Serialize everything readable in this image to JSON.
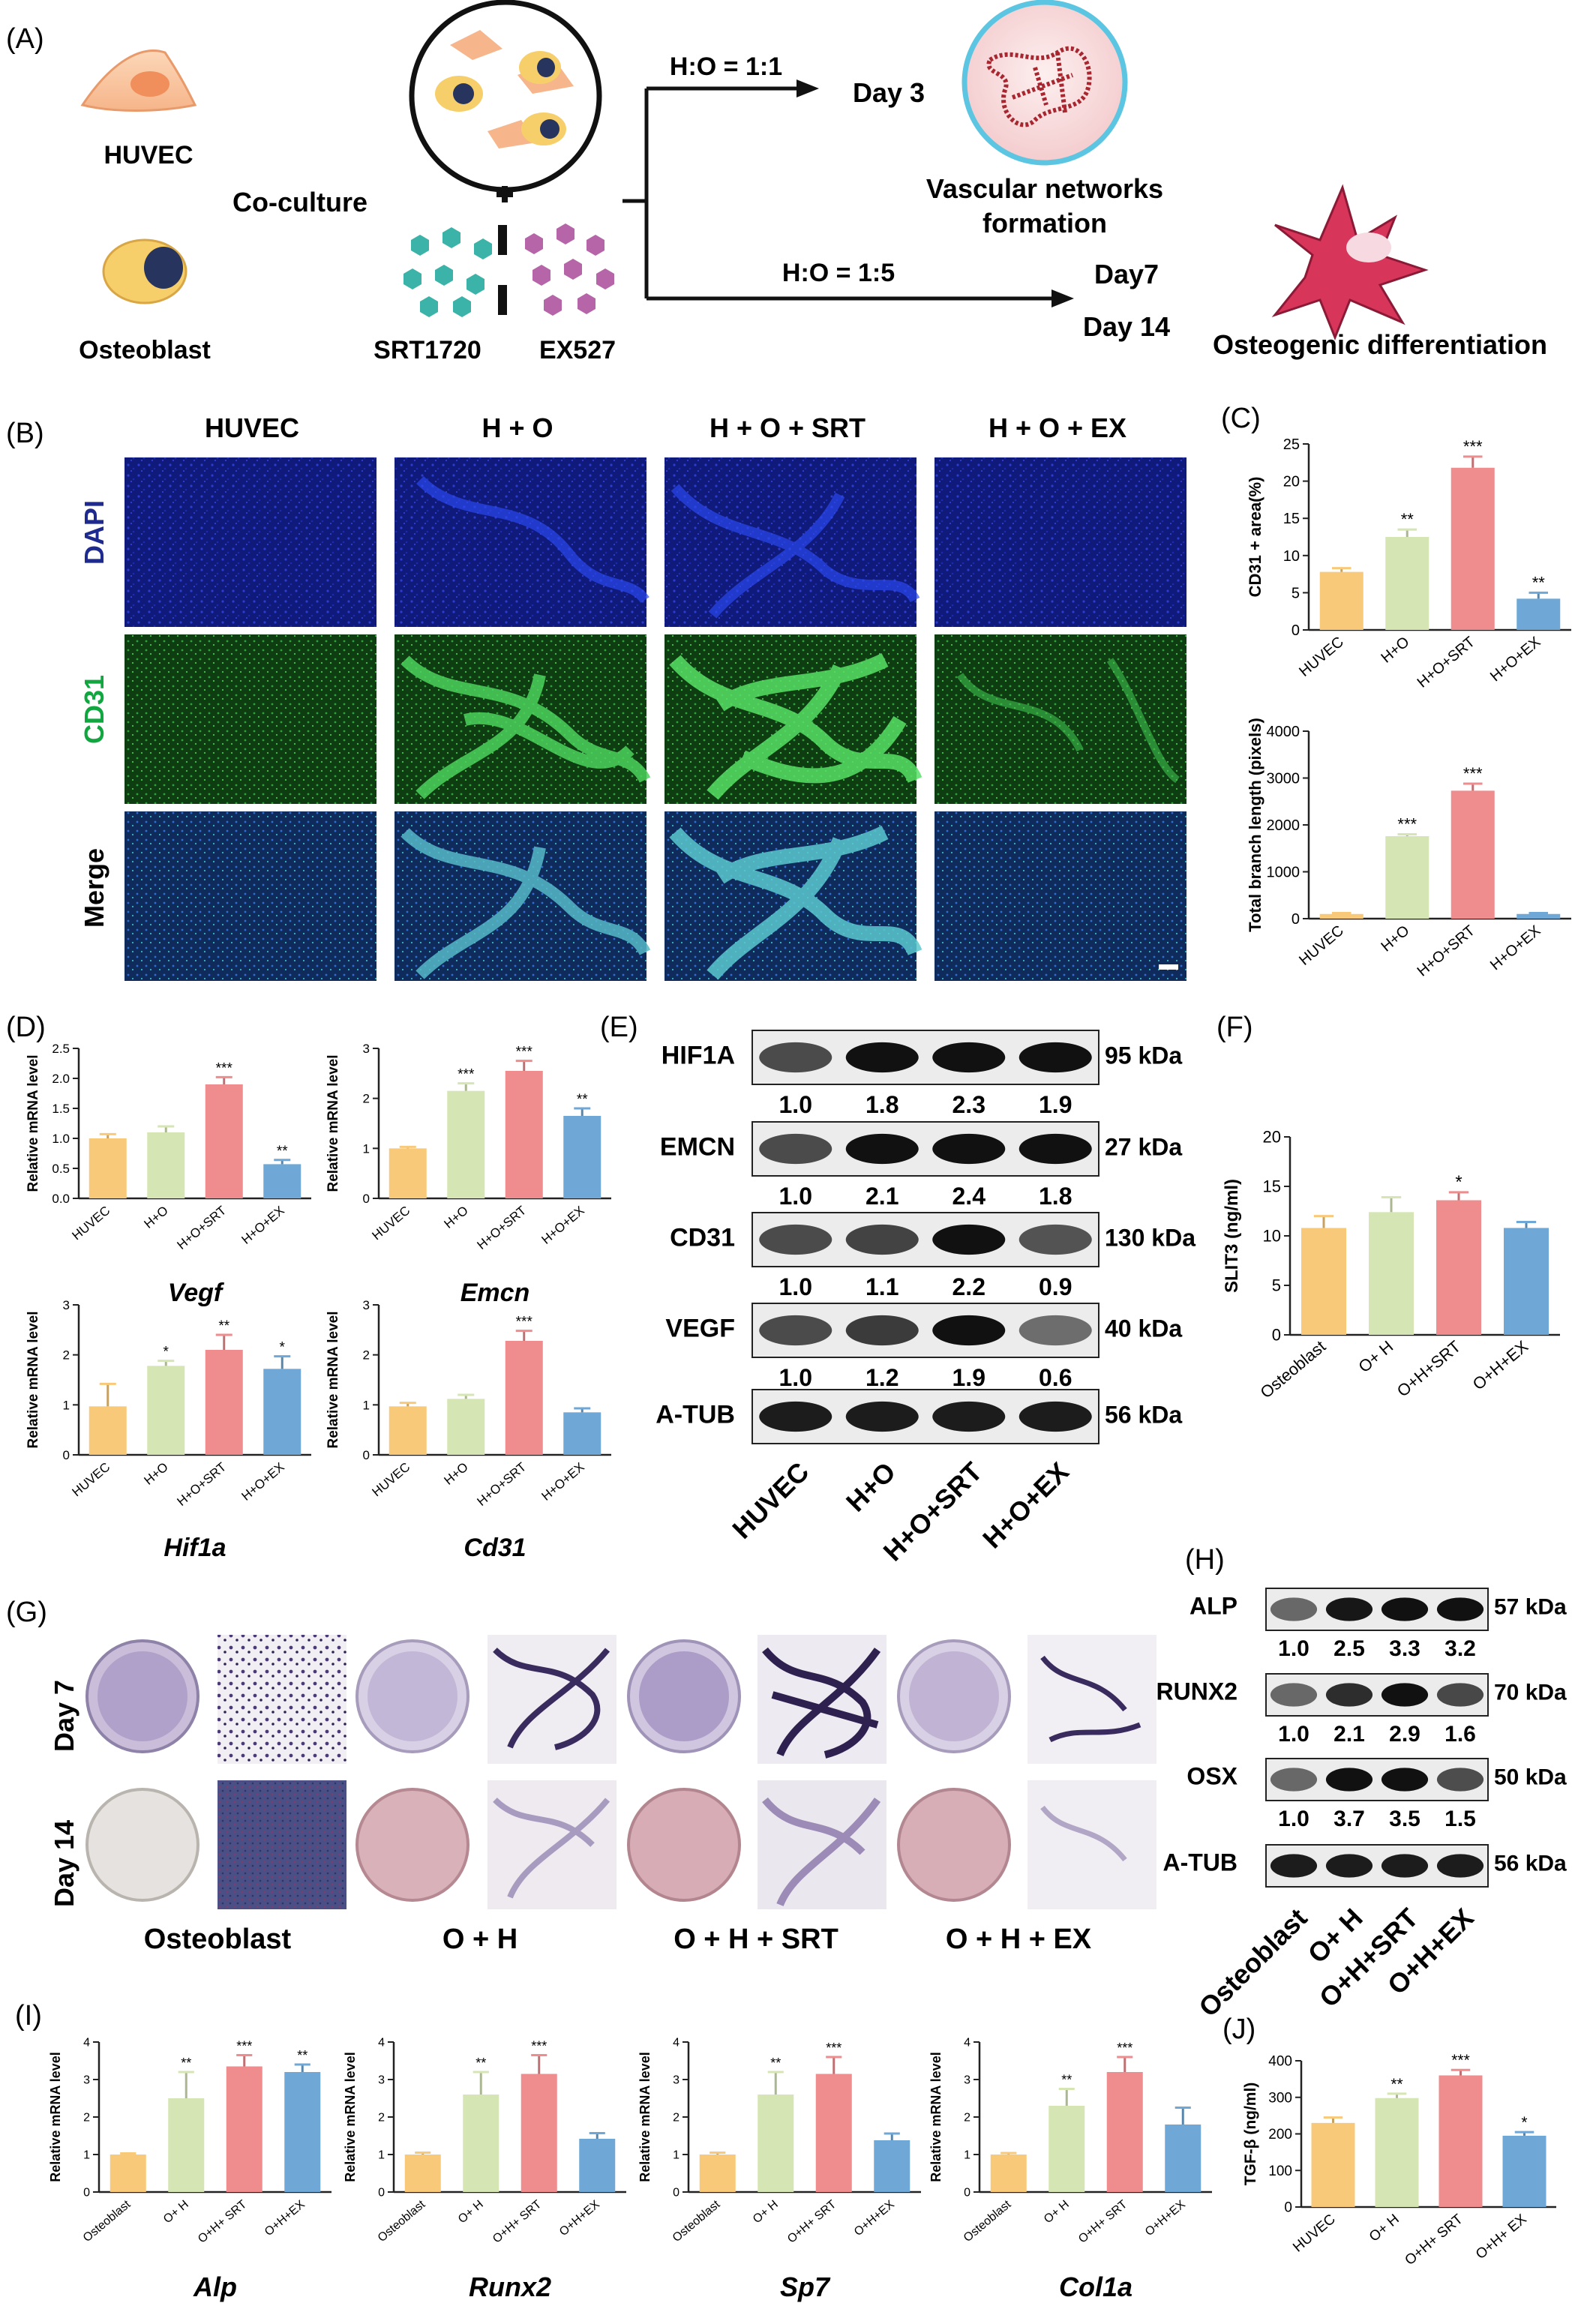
{
  "colors": {
    "yellow": "#F9C97A",
    "green": "#D5E5B4",
    "red": "#EE8C8E",
    "blue": "#6FA8D6",
    "grey": "#E6E6E6"
  },
  "panel_A": {
    "label": "(A)",
    "cell1": "HUVEC",
    "cell2": "Osteoblast",
    "coculture": "Co-culture",
    "drug1": "SRT1720",
    "drug2": "EX527",
    "ratio1": "H:O = 1:1",
    "ratio2": "H:O = 1:5",
    "day3": "Day 3",
    "day7": "Day7",
    "day14": "Day 14",
    "out1_line1": "Vascular networks",
    "out1_line2": "formation",
    "out2": "Osteogenic differentiation"
  },
  "panel_B": {
    "label": "(B)",
    "cols": [
      "HUVEC",
      "H + O",
      "H + O + SRT",
      "H + O + EX"
    ],
    "rows": [
      "DAPI",
      "CD31",
      "Merge"
    ]
  },
  "panel_C": {
    "label": "(C)"
  },
  "panel_D": {
    "label": "(D)"
  },
  "panel_E": {
    "label": "(E)",
    "bands": [
      {
        "name": "HIF1A",
        "kda": "95 kDa",
        "ratios": [
          "1.0",
          "1.8",
          "2.3",
          "1.9"
        ]
      },
      {
        "name": "EMCN",
        "kda": "27 kDa",
        "ratios": [
          "1.0",
          "2.1",
          "2.4",
          "1.8"
        ]
      },
      {
        "name": "CD31",
        "kda": "130 kDa",
        "ratios": [
          "1.0",
          "1.1",
          "2.2",
          "0.9"
        ]
      },
      {
        "name": "VEGF",
        "kda": "40 kDa",
        "ratios": [
          "1.0",
          "1.2",
          "1.9",
          "0.6"
        ]
      },
      {
        "name": "A-TUB",
        "kda": "56 kDa",
        "ratios": []
      }
    ],
    "lanes": [
      "HUVEC",
      "H+O",
      "H+O+SRT",
      "H+O+EX"
    ]
  },
  "panel_F": {
    "label": "(F)"
  },
  "panel_G": {
    "label": "(G)",
    "rows": [
      "Day 7",
      "Day 14"
    ],
    "cols": [
      "Osteoblast",
      "O + H",
      "O + H + SRT",
      "O + H + EX"
    ]
  },
  "panel_H": {
    "label": "(H)",
    "bands": [
      {
        "name": "ALP",
        "kda": "57 kDa",
        "ratios": [
          "1.0",
          "2.5",
          "3.3",
          "3.2"
        ]
      },
      {
        "name": "RUNX2",
        "kda": "70 kDa",
        "ratios": [
          "1.0",
          "2.1",
          "2.9",
          "1.6"
        ]
      },
      {
        "name": "OSX",
        "kda": "50 kDa",
        "ratios": [
          "1.0",
          "3.7",
          "3.5",
          "1.5"
        ]
      },
      {
        "name": "A-TUB",
        "kda": "56 kDa",
        "ratios": []
      }
    ],
    "lanes": [
      "Osteoblast",
      "O+ H",
      "O+H+SRT",
      "O+H+EX"
    ]
  },
  "panel_I": {
    "label": "(I)"
  },
  "panel_J": {
    "label": "(J)"
  },
  "chart_data": [
    {
      "id": "C1",
      "type": "bar",
      "ylabel": "CD31 + area(%)",
      "ylim": [
        0,
        25
      ],
      "yticks": [
        0,
        5,
        10,
        15,
        20,
        25
      ],
      "categories": [
        "HUVEC",
        "H+O",
        "H+O+SRT",
        "H+O+EX"
      ],
      "values": [
        7.8,
        12.5,
        21.8,
        4.2
      ],
      "errors": [
        0.5,
        1.0,
        1.5,
        0.8
      ],
      "sig": [
        "",
        "**",
        "***",
        "**"
      ]
    },
    {
      "id": "C2",
      "type": "bar",
      "ylabel": "Total branch length (pixels)",
      "ylim": [
        0,
        4000
      ],
      "yticks": [
        0,
        1000,
        2000,
        3000,
        4000
      ],
      "categories": [
        "HUVEC",
        "H+O",
        "H+O+SRT",
        "H+O+EX"
      ],
      "values": [
        100,
        1760,
        2730,
        100
      ],
      "errors": [
        20,
        40,
        150,
        20
      ],
      "sig": [
        "",
        "***",
        "***",
        ""
      ]
    },
    {
      "id": "D1",
      "type": "bar",
      "title": "Vegf",
      "ylabel": "Relative mRNA level",
      "ylim": [
        0,
        2.5
      ],
      "yticks": [
        "0.0",
        "0.5",
        "1.0",
        "1.5",
        "2.0",
        "2.5"
      ],
      "categories": [
        "HUVEC",
        "H+O",
        "H+O+SRT",
        "H+O+EX"
      ],
      "values": [
        1.0,
        1.1,
        1.9,
        0.57
      ],
      "errors": [
        0.07,
        0.1,
        0.12,
        0.07
      ],
      "sig": [
        "",
        "",
        "***",
        "**"
      ]
    },
    {
      "id": "D2",
      "type": "bar",
      "title": "Emcn",
      "ylabel": "Relative mRNA level",
      "ylim": [
        0,
        3
      ],
      "yticks": [
        "0",
        "1",
        "2",
        "3"
      ],
      "categories": [
        "HUVEC",
        "H+O",
        "H+O+SRT",
        "H+O+EX"
      ],
      "values": [
        1.0,
        2.15,
        2.55,
        1.65
      ],
      "errors": [
        0.03,
        0.15,
        0.2,
        0.15
      ],
      "sig": [
        "",
        "***",
        "***",
        "**"
      ]
    },
    {
      "id": "D3",
      "type": "bar",
      "title": "Hif1a",
      "ylabel": "Relative mRNA level",
      "ylim": [
        0,
        3
      ],
      "yticks": [
        "0",
        "1",
        "2",
        "3"
      ],
      "categories": [
        "HUVEC",
        "H+O",
        "H+O+SRT",
        "H+O+EX"
      ],
      "values": [
        0.97,
        1.78,
        2.1,
        1.72
      ],
      "errors": [
        0.45,
        0.1,
        0.3,
        0.25
      ],
      "sig": [
        "",
        "*",
        "**",
        "*"
      ]
    },
    {
      "id": "D4",
      "type": "bar",
      "title": "Cd31",
      "ylabel": "Relative mRNA level",
      "ylim": [
        0,
        3
      ],
      "yticks": [
        "0",
        "1",
        "2",
        "3"
      ],
      "categories": [
        "HUVEC",
        "H+O",
        "H+O+SRT",
        "H+O+EX"
      ],
      "values": [
        0.97,
        1.12,
        2.28,
        0.85
      ],
      "errors": [
        0.07,
        0.08,
        0.2,
        0.08
      ],
      "sig": [
        "",
        "",
        "***",
        ""
      ]
    },
    {
      "id": "F",
      "type": "bar",
      "ylabel": "SLIT3 (ng/ml)",
      "ylim": [
        0,
        20
      ],
      "yticks": [
        "0",
        "5",
        "10",
        "15",
        "20"
      ],
      "categories": [
        "Osteoblast",
        "O+ H",
        "O+H+SRT",
        "O+H+EX"
      ],
      "values": [
        10.8,
        12.4,
        13.6,
        10.8
      ],
      "errors": [
        1.2,
        1.5,
        0.8,
        0.6
      ],
      "sig": [
        "",
        "",
        "*",
        ""
      ]
    },
    {
      "id": "I1",
      "type": "bar",
      "title": "Alp",
      "ylabel": "Relative mRNA level",
      "ylim": [
        0,
        4
      ],
      "yticks": [
        "0",
        "1",
        "2",
        "3",
        "4"
      ],
      "categories": [
        "Osteoblast",
        "O+ H",
        "O+H+ SRT",
        "O+H+EX"
      ],
      "values": [
        1.0,
        2.5,
        3.35,
        3.2
      ],
      "errors": [
        0.03,
        0.7,
        0.3,
        0.2
      ],
      "sig": [
        "",
        "**",
        "***",
        "**"
      ]
    },
    {
      "id": "I2",
      "type": "bar",
      "title": "Runx2",
      "ylabel": "Relative mRNA level",
      "ylim": [
        0,
        4
      ],
      "yticks": [
        "0",
        "1",
        "2",
        "3",
        "4"
      ],
      "categories": [
        "Osteoblast",
        "O+ H",
        "O+H+ SRT",
        "O+H+EX"
      ],
      "values": [
        1.0,
        2.6,
        3.15,
        1.42
      ],
      "errors": [
        0.05,
        0.6,
        0.5,
        0.15
      ],
      "sig": [
        "",
        "**",
        "***",
        ""
      ]
    },
    {
      "id": "I3",
      "type": "bar",
      "title": "Sp7",
      "ylabel": "Relative mRNA level",
      "ylim": [
        0,
        4
      ],
      "yticks": [
        "0",
        "1",
        "2",
        "3",
        "4"
      ],
      "categories": [
        "Osteoblast",
        "O+ H",
        "O+H+ SRT",
        "O+H+EX"
      ],
      "values": [
        1.0,
        2.6,
        3.15,
        1.38
      ],
      "errors": [
        0.05,
        0.6,
        0.45,
        0.18
      ],
      "sig": [
        "",
        "**",
        "***",
        ""
      ]
    },
    {
      "id": "I4",
      "type": "bar",
      "title": "Col1a",
      "ylabel": "Relative mRNA level",
      "ylim": [
        0,
        4
      ],
      "yticks": [
        "0",
        "1",
        "2",
        "3",
        "4"
      ],
      "categories": [
        "Osteoblast",
        "O+ H",
        "O+H+ SRT",
        "O+H+EX"
      ],
      "values": [
        1.0,
        2.3,
        3.2,
        1.8
      ],
      "errors": [
        0.04,
        0.45,
        0.4,
        0.45
      ],
      "sig": [
        "",
        "**",
        "***",
        ""
      ]
    },
    {
      "id": "J",
      "type": "bar",
      "ylabel": "TGF-β (ng/ml)",
      "ylim": [
        0,
        400
      ],
      "yticks": [
        "0",
        "100",
        "200",
        "300",
        "400"
      ],
      "categories": [
        "HUVEC",
        "O+ H",
        "O+H+ SRT",
        "O+H+ EX"
      ],
      "values": [
        230,
        298,
        360,
        195
      ],
      "errors": [
        15,
        12,
        15,
        10
      ],
      "sig": [
        "",
        "**",
        "***",
        "*"
      ]
    }
  ]
}
